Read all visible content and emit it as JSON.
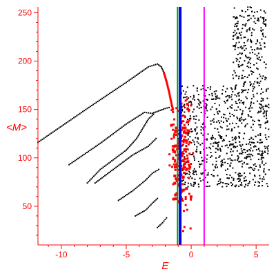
{
  "chart_data": {
    "type": "scatter",
    "xlabel": "E",
    "ylabel": "<M>",
    "xlim": [
      -11.8,
      6.0
    ],
    "ylim": [
      10,
      256
    ],
    "x_ticks": [
      -10,
      -5,
      0,
      5
    ],
    "x_tick_labels": [
      "-10",
      "-5",
      "0",
      "5"
    ],
    "y_ticks": [
      50,
      100,
      150,
      200,
      250
    ],
    "y_tick_labels": [
      "50",
      "100",
      "150",
      "200",
      "250"
    ],
    "grid": false,
    "colors": {
      "axis": "#ff0000",
      "black_points": "#000000",
      "red_points": "#ff0000",
      "green_line": "#00a000",
      "blue_line": "#0000ff",
      "magenta_line": "#ff00ff"
    },
    "vertical_lines": [
      {
        "color": "green",
        "x": -1.05
      },
      {
        "color": "blue",
        "x": -0.85
      },
      {
        "color": "magenta",
        "x": 1.0
      }
    ],
    "series": [
      {
        "color": "black",
        "shape": "branch",
        "values": [
          [
            -11.8,
            116
          ],
          [
            -8.0,
            151
          ],
          [
            -5.0,
            178
          ],
          [
            -3.3,
            194
          ],
          [
            -2.6,
            197
          ],
          [
            -2.3,
            194
          ],
          [
            -2.1,
            188
          ]
        ]
      },
      {
        "color": "red",
        "shape": "branch",
        "values": [
          [
            -2.1,
            188
          ],
          [
            -1.9,
            179
          ],
          [
            -1.7,
            168
          ],
          [
            -1.5,
            155
          ],
          [
            -1.4,
            150
          ]
        ]
      },
      {
        "color": "black",
        "shape": "branch",
        "values": [
          [
            -9.4,
            93
          ],
          [
            -7.0,
            115
          ],
          [
            -5.0,
            135
          ],
          [
            -3.6,
            147
          ],
          [
            -3.0,
            146
          ],
          [
            -2.0,
            151
          ],
          [
            -1.7,
            152
          ]
        ]
      },
      {
        "color": "black",
        "shape": "branch",
        "values": [
          [
            -8.0,
            74
          ],
          [
            -7.0,
            88
          ],
          [
            -6.0,
            98
          ],
          [
            -5.0,
            108
          ],
          [
            -4.2,
            120
          ],
          [
            -3.3,
            140
          ],
          [
            -2.9,
            145
          ]
        ]
      },
      {
        "color": "black",
        "shape": "branch",
        "values": [
          [
            -7.4,
            74
          ],
          [
            -6.0,
            88
          ],
          [
            -4.5,
            103
          ],
          [
            -3.3,
            112
          ],
          [
            -2.7,
            120
          ]
        ]
      },
      {
        "color": "black",
        "shape": "branch",
        "values": [
          [
            -5.6,
            56
          ],
          [
            -4.5,
            66
          ],
          [
            -3.5,
            77
          ],
          [
            -3.0,
            84
          ],
          [
            -2.5,
            88
          ]
        ]
      },
      {
        "color": "black",
        "shape": "branch",
        "values": [
          [
            -4.3,
            40
          ],
          [
            -3.5,
            46
          ],
          [
            -3.0,
            53
          ],
          [
            -2.6,
            58
          ]
        ]
      },
      {
        "color": "black",
        "shape": "branch",
        "values": [
          [
            -2.6,
            28
          ],
          [
            -2.2,
            33
          ],
          [
            -1.9,
            38
          ]
        ]
      },
      {
        "color": "black",
        "shape": "cloud",
        "x_range": [
          -1.0,
          6.0
        ],
        "y_range": [
          70,
          175
        ]
      },
      {
        "color": "black",
        "shape": "cloud",
        "x_range": [
          3.2,
          5.8
        ],
        "y_range": [
          175,
          256
        ]
      },
      {
        "color": "red",
        "shape": "cloud",
        "x_range": [
          -2.2,
          0.6
        ],
        "y_range": [
          22,
          165
        ]
      }
    ]
  }
}
